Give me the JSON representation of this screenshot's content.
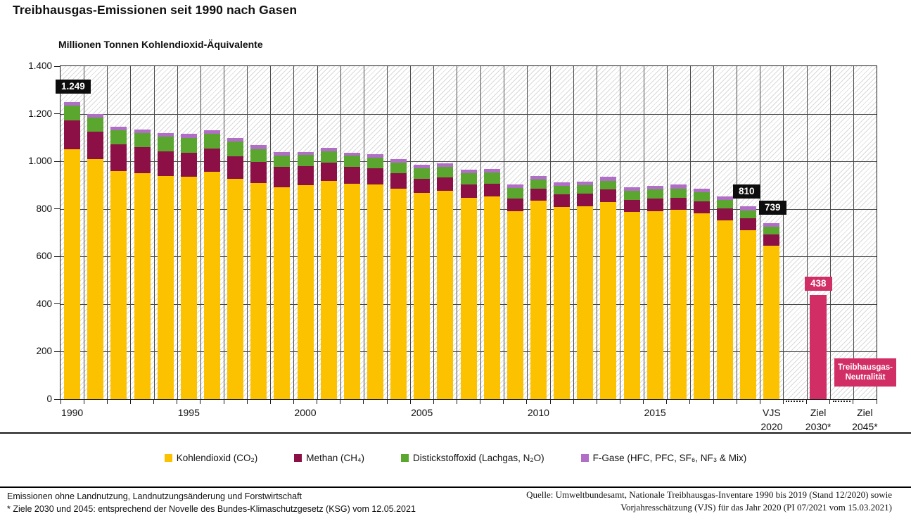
{
  "header": {
    "title": "Treibhausgas-Emissionen seit 1990 nach Gasen",
    "unit_label": "Millionen Tonnen Kohlendioxid-Äquivalente"
  },
  "chart_data": {
    "type": "stacked-bar",
    "title": "Treibhausgas-Emissionen seit 1990 nach Gasen",
    "ylabel": "Millionen Tonnen Kohlendioxid-Äquivalente",
    "ylim": [
      0,
      1400
    ],
    "grid": true,
    "y_ticks": [
      {
        "value": 1400,
        "label": "1.400"
      },
      {
        "value": 1200,
        "label": "1.200"
      },
      {
        "value": 1000,
        "label": "1.000"
      },
      {
        "value": 800,
        "label": "800"
      },
      {
        "value": 600,
        "label": "600"
      },
      {
        "value": 400,
        "label": "400"
      },
      {
        "value": 200,
        "label": "200"
      },
      {
        "value": 0,
        "label": "0"
      }
    ],
    "years": [
      1990,
      1991,
      1992,
      1993,
      1994,
      1995,
      1996,
      1997,
      1998,
      1999,
      2000,
      2001,
      2002,
      2003,
      2004,
      2005,
      2006,
      2007,
      2008,
      2009,
      2010,
      2011,
      2012,
      2013,
      2014,
      2015,
      2016,
      2017,
      2018,
      2019,
      2020
    ],
    "series": [
      {
        "name": "Kohlendioxid (CO₂)",
        "slug": "co2",
        "color": "#fcc200",
        "values": [
          1052,
          1010,
          960,
          950,
          939,
          936,
          955,
          926,
          908,
          891,
          900,
          919,
          905,
          904,
          886,
          867,
          876,
          848,
          853,
          790,
          834,
          809,
          812,
          828,
          786,
          791,
          797,
          782,
          753,
          710,
          644
        ]
      },
      {
        "name": "Methan (CH₄)",
        "slug": "ch4",
        "color": "#8c1045",
        "values": [
          121,
          116,
          112,
          110,
          104,
          101,
          99,
          95,
          90,
          85,
          80,
          77,
          73,
          68,
          64,
          60,
          57,
          55,
          54,
          53,
          52,
          52,
          52,
          53,
          52,
          52,
          51,
          50,
          49,
          50,
          49
        ]
      },
      {
        "name": "Distickstoffoxid (Lachgas, N₂O)",
        "slug": "n2o",
        "color": "#5aa62e",
        "values": [
          61,
          57,
          60,
          60,
          61,
          61,
          62,
          61,
          54,
          49,
          47,
          47,
          45,
          44,
          45,
          44,
          44,
          46,
          46,
          44,
          37,
          36,
          37,
          38,
          38,
          39,
          38,
          37,
          36,
          34,
          32
        ]
      },
      {
        "name": "F-Gase (HFC, PFC, SF₆, NF₃ & Mix)",
        "slug": "f-gase",
        "color": "#b06ec6",
        "values": [
          15,
          15,
          14,
          15,
          16,
          17,
          16,
          17,
          17,
          15,
          13,
          13,
          13,
          14,
          15,
          15,
          15,
          15,
          15,
          15,
          15,
          15,
          15,
          16,
          16,
          16,
          16,
          16,
          15,
          16,
          14
        ]
      }
    ],
    "totals": [
      1249,
      1198,
      1146,
      1135,
      1120,
      1115,
      1132,
      1099,
      1069,
      1040,
      1040,
      1056,
      1036,
      1030,
      1010,
      986,
      992,
      964,
      968,
      902,
      938,
      912,
      916,
      935,
      892,
      898,
      902,
      885,
      853,
      810,
      739
    ],
    "value_labels": [
      {
        "target": "1990",
        "text": "1.249",
        "style": "black"
      },
      {
        "target": "2019",
        "text": "810",
        "style": "black"
      },
      {
        "target": "2020",
        "text": "739",
        "style": "black"
      },
      {
        "target": "Ziel 2030*",
        "text": "438",
        "style": "pink"
      }
    ],
    "target_bar_2030": {
      "category": "Ziel 2030*",
      "value": 438,
      "color": "#d22e66"
    },
    "neutrality_box": {
      "category": "Ziel 2045*",
      "lines": [
        "Treibhausgas-",
        "Neutralität"
      ],
      "color": "#d22e66"
    },
    "x_ticks": [
      {
        "col": 0,
        "lines": [
          "1990"
        ]
      },
      {
        "col": 5,
        "lines": [
          "1995"
        ]
      },
      {
        "col": 10,
        "lines": [
          "2000"
        ]
      },
      {
        "col": 15,
        "lines": [
          "2005"
        ]
      },
      {
        "col": 20,
        "lines": [
          "2010"
        ]
      },
      {
        "col": 25,
        "lines": [
          "2015"
        ]
      },
      {
        "col": 30,
        "lines": [
          "VJS",
          "2020"
        ]
      },
      {
        "col": 32,
        "lines": [
          "Ziel",
          "2030*"
        ]
      },
      {
        "col": 34,
        "lines": [
          "Ziel",
          "2045*"
        ]
      }
    ],
    "legend_position": "bottom"
  },
  "footnotes": {
    "left_line1": "Emissionen ohne Landnutzung, Landnutzungsänderung und Forstwirtschaft",
    "left_line2": "* Ziele 2030 und 2045: entsprechend der Novelle des Bundes-Klimaschutzgesetz (KSG) vom 12.05.2021",
    "source_line1": "Quelle: Umweltbundesamt, Nationale Treibhausgas-Inventare 1990 bis 2019 (Stand 12/2020) sowie",
    "source_line2": "Vorjahresschätzung (VJS) für das Jahr 2020 (PI 07/2021 vom 15.03.2021)"
  }
}
